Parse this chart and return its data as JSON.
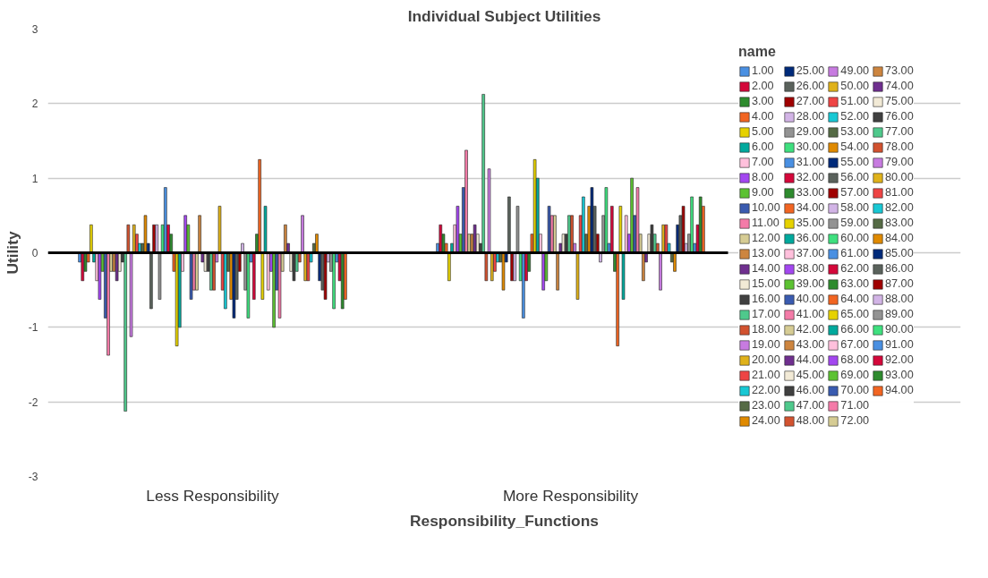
{
  "chart_data": {
    "type": "bar",
    "title": "Individual Subject Utilities",
    "xlabel": "Responsibility_Functions",
    "ylabel": "Utility",
    "legend_title": "name",
    "categories": [
      "Less Responsibility",
      "More Responsibility"
    ],
    "ylim": [
      -3,
      3
    ],
    "yticks": [
      -3,
      -2,
      -1,
      0,
      1,
      2,
      3
    ],
    "grid": "y",
    "legend": "right",
    "ref_lines": [
      {
        "axis": "y",
        "value": 0,
        "color": "#000000"
      }
    ],
    "series": [
      {
        "name": "1.00",
        "color": "#4a90e2",
        "values": [
          -0.125,
          0.125
        ]
      },
      {
        "name": "2.00",
        "color": "#d4073a",
        "values": [
          -0.375,
          0.375
        ]
      },
      {
        "name": "3.00",
        "color": "#2e8b2e",
        "values": [
          -0.25,
          0.25
        ]
      },
      {
        "name": "4.00",
        "color": "#f26522",
        "values": [
          -0.125,
          0.125
        ]
      },
      {
        "name": "5.00",
        "color": "#e6d200",
        "values": [
          0.375,
          -0.375
        ]
      },
      {
        "name": "6.00",
        "color": "#00a99d",
        "values": [
          -0.125,
          0.125
        ]
      },
      {
        "name": "7.00",
        "color": "#ffc0dc",
        "values": [
          -0.375,
          0.375
        ]
      },
      {
        "name": "8.00",
        "color": "#a347f0",
        "values": [
          -0.625,
          0.625
        ]
      },
      {
        "name": "9.00",
        "color": "#5cc232",
        "values": [
          -0.25,
          0.25
        ]
      },
      {
        "name": "10.00",
        "color": "#3a5bb0",
        "values": [
          -0.875,
          0.875
        ]
      },
      {
        "name": "11.00",
        "color": "#f47ba8",
        "values": [
          -1.375,
          1.375
        ]
      },
      {
        "name": "12.00",
        "color": "#d6cc94",
        "values": [
          -0.25,
          0.25
        ]
      },
      {
        "name": "13.00",
        "color": "#cd853f",
        "values": [
          -0.25,
          0.25
        ]
      },
      {
        "name": "14.00",
        "color": "#6f2f8f",
        "values": [
          -0.375,
          0.375
        ]
      },
      {
        "name": "15.00",
        "color": "#f2ead6",
        "values": [
          -0.25,
          0.25
        ]
      },
      {
        "name": "16.00",
        "color": "#404040",
        "values": [
          -0.125,
          0.125
        ]
      },
      {
        "name": "17.00",
        "color": "#4fc98c",
        "values": [
          -2.125,
          2.125
        ]
      },
      {
        "name": "18.00",
        "color": "#d2522f",
        "values": [
          0.375,
          -0.375
        ]
      },
      {
        "name": "19.00",
        "color": "#c77be0",
        "values": [
          -1.125,
          1.125
        ]
      },
      {
        "name": "20.00",
        "color": "#e0b21a",
        "values": [
          0.375,
          -0.375
        ]
      },
      {
        "name": "21.00",
        "color": "#ee4444",
        "values": [
          0.25,
          -0.25
        ]
      },
      {
        "name": "22.00",
        "color": "#18c8d4",
        "values": [
          0.125,
          -0.125
        ]
      },
      {
        "name": "23.00",
        "color": "#556b45",
        "values": [
          0.125,
          -0.125
        ]
      },
      {
        "name": "24.00",
        "color": "#e08a00",
        "values": [
          0.5,
          -0.5
        ]
      },
      {
        "name": "25.00",
        "color": "#002a7a",
        "values": [
          0.125,
          -0.125
        ]
      },
      {
        "name": "26.00",
        "color": "#5a625c",
        "values": [
          -0.75,
          0.75
        ]
      },
      {
        "name": "27.00",
        "color": "#a00000",
        "values": [
          0.375,
          -0.375
        ]
      },
      {
        "name": "28.00",
        "color": "#d2b4e6",
        "values": [
          0.375,
          -0.375
        ]
      },
      {
        "name": "29.00",
        "color": "#939393",
        "values": [
          -0.625,
          0.625
        ]
      },
      {
        "name": "30.00",
        "color": "#3fe07f",
        "values": [
          0.375,
          -0.375
        ]
      },
      {
        "name": "31.00",
        "color": "#4a90e2",
        "values": [
          0.875,
          -0.875
        ]
      },
      {
        "name": "32.00",
        "color": "#d4073a",
        "values": [
          0.375,
          -0.375
        ]
      },
      {
        "name": "33.00",
        "color": "#2e8b2e",
        "values": [
          0.25,
          -0.25
        ]
      },
      {
        "name": "34.00",
        "color": "#f26522",
        "values": [
          -0.25,
          0.25
        ]
      },
      {
        "name": "35.00",
        "color": "#e6d200",
        "values": [
          -1.25,
          1.25
        ]
      },
      {
        "name": "36.00",
        "color": "#00a99d",
        "values": [
          -1.0,
          1.0
        ]
      },
      {
        "name": "37.00",
        "color": "#ffc0dc",
        "values": [
          -0.25,
          0.25
        ]
      },
      {
        "name": "38.00",
        "color": "#a347f0",
        "values": [
          0.5,
          -0.5
        ]
      },
      {
        "name": "39.00",
        "color": "#5cc232",
        "values": [
          0.375,
          -0.375
        ]
      },
      {
        "name": "40.00",
        "color": "#3a5bb0",
        "values": [
          -0.625,
          0.625
        ]
      },
      {
        "name": "41.00",
        "color": "#f47ba8",
        "values": [
          -0.5,
          0.5
        ]
      },
      {
        "name": "42.00",
        "color": "#d6cc94",
        "values": [
          -0.5,
          0.5
        ]
      },
      {
        "name": "43.00",
        "color": "#cd853f",
        "values": [
          0.5,
          -0.5
        ]
      },
      {
        "name": "44.00",
        "color": "#6f2f8f",
        "values": [
          -0.125,
          0.125
        ]
      },
      {
        "name": "45.00",
        "color": "#f2ead6",
        "values": [
          -0.25,
          0.25
        ]
      },
      {
        "name": "46.00",
        "color": "#404040",
        "values": [
          -0.25,
          0.25
        ]
      },
      {
        "name": "47.00",
        "color": "#4fc98c",
        "values": [
          -0.5,
          0.5
        ]
      },
      {
        "name": "48.00",
        "color": "#d2522f",
        "values": [
          -0.5,
          0.5
        ]
      },
      {
        "name": "49.00",
        "color": "#c77be0",
        "values": [
          -0.125,
          0.125
        ]
      },
      {
        "name": "50.00",
        "color": "#e0b21a",
        "values": [
          0.625,
          -0.625
        ]
      },
      {
        "name": "51.00",
        "color": "#ee4444",
        "values": [
          -0.5,
          0.5
        ]
      },
      {
        "name": "52.00",
        "color": "#18c8d4",
        "values": [
          -0.75,
          0.75
        ]
      },
      {
        "name": "53.00",
        "color": "#556b45",
        "values": [
          -0.25,
          0.25
        ]
      },
      {
        "name": "54.00",
        "color": "#e08a00",
        "values": [
          -0.625,
          0.625
        ]
      },
      {
        "name": "55.00",
        "color": "#002a7a",
        "values": [
          -0.875,
          0.875
        ]
      },
      {
        "name": "56.00",
        "color": "#5a625c",
        "values": [
          -0.625,
          0.625
        ]
      },
      {
        "name": "57.00",
        "color": "#a00000",
        "values": [
          -0.25,
          0.25
        ]
      },
      {
        "name": "58.00",
        "color": "#d2b4e6",
        "values": [
          0.125,
          -0.125
        ]
      },
      {
        "name": "59.00",
        "color": "#939393",
        "values": [
          -0.5,
          0.5
        ]
      },
      {
        "name": "60.00",
        "color": "#3fe07f",
        "values": [
          -0.875,
          0.875
        ]
      },
      {
        "name": "61.00",
        "color": "#4a90e2",
        "values": [
          -0.125,
          0.125
        ]
      },
      {
        "name": "62.00",
        "color": "#d4073a",
        "values": [
          -0.625,
          0.625
        ]
      },
      {
        "name": "63.00",
        "color": "#2e8b2e",
        "values": [
          0.25,
          -0.25
        ]
      },
      {
        "name": "64.00",
        "color": "#f26522",
        "values": [
          1.25,
          -1.25
        ]
      },
      {
        "name": "65.00",
        "color": "#e6d200",
        "values": [
          -0.625,
          0.625
        ]
      },
      {
        "name": "66.00",
        "color": "#00a99d",
        "values": [
          0.625,
          -0.625
        ]
      },
      {
        "name": "67.00",
        "color": "#ffc0dc",
        "values": [
          -0.5,
          0.5
        ]
      },
      {
        "name": "68.00",
        "color": "#a347f0",
        "values": [
          -0.25,
          0.25
        ]
      },
      {
        "name": "69.00",
        "color": "#5cc232",
        "values": [
          -1.0,
          1.0
        ]
      },
      {
        "name": "70.00",
        "color": "#3a5bb0",
        "values": [
          -0.5,
          0.5
        ]
      },
      {
        "name": "71.00",
        "color": "#f47ba8",
        "values": [
          -0.875,
          0.875
        ]
      },
      {
        "name": "72.00",
        "color": "#d6cc94",
        "values": [
          -0.25,
          0.25
        ]
      },
      {
        "name": "73.00",
        "color": "#cd853f",
        "values": [
          0.375,
          -0.375
        ]
      },
      {
        "name": "74.00",
        "color": "#6f2f8f",
        "values": [
          0.125,
          -0.125
        ]
      },
      {
        "name": "75.00",
        "color": "#f2ead6",
        "values": [
          -0.25,
          0.25
        ]
      },
      {
        "name": "76.00",
        "color": "#404040",
        "values": [
          -0.375,
          0.375
        ]
      },
      {
        "name": "77.00",
        "color": "#4fc98c",
        "values": [
          -0.25,
          0.25
        ]
      },
      {
        "name": "78.00",
        "color": "#d2522f",
        "values": [
          -0.125,
          0.125
        ]
      },
      {
        "name": "79.00",
        "color": "#c77be0",
        "values": [
          0.5,
          -0.5
        ]
      },
      {
        "name": "80.00",
        "color": "#e0b21a",
        "values": [
          -0.375,
          0.375
        ]
      },
      {
        "name": "81.00",
        "color": "#ee4444",
        "values": [
          -0.375,
          0.375
        ]
      },
      {
        "name": "82.00",
        "color": "#18c8d4",
        "values": [
          -0.125,
          0.125
        ]
      },
      {
        "name": "83.00",
        "color": "#556b45",
        "values": [
          0.125,
          -0.125
        ]
      },
      {
        "name": "84.00",
        "color": "#e08a00",
        "values": [
          0.25,
          -0.25
        ]
      },
      {
        "name": "85.00",
        "color": "#002a7a",
        "values": [
          -0.375,
          0.375
        ]
      },
      {
        "name": "86.00",
        "color": "#5a625c",
        "values": [
          -0.5,
          0.5
        ]
      },
      {
        "name": "87.00",
        "color": "#a00000",
        "values": [
          -0.625,
          0.625
        ]
      },
      {
        "name": "88.00",
        "color": "#d2b4e6",
        "values": [
          -0.125,
          0.125
        ]
      },
      {
        "name": "89.00",
        "color": "#939393",
        "values": [
          -0.25,
          0.25
        ]
      },
      {
        "name": "90.00",
        "color": "#3fe07f",
        "values": [
          -0.75,
          0.75
        ]
      },
      {
        "name": "91.00",
        "color": "#4a90e2",
        "values": [
          -0.125,
          0.125
        ]
      },
      {
        "name": "92.00",
        "color": "#d4073a",
        "values": [
          -0.375,
          0.375
        ]
      },
      {
        "name": "93.00",
        "color": "#2e8b2e",
        "values": [
          -0.75,
          0.75
        ]
      },
      {
        "name": "94.00",
        "color": "#f26522",
        "values": [
          -0.625,
          0.625
        ]
      }
    ]
  }
}
